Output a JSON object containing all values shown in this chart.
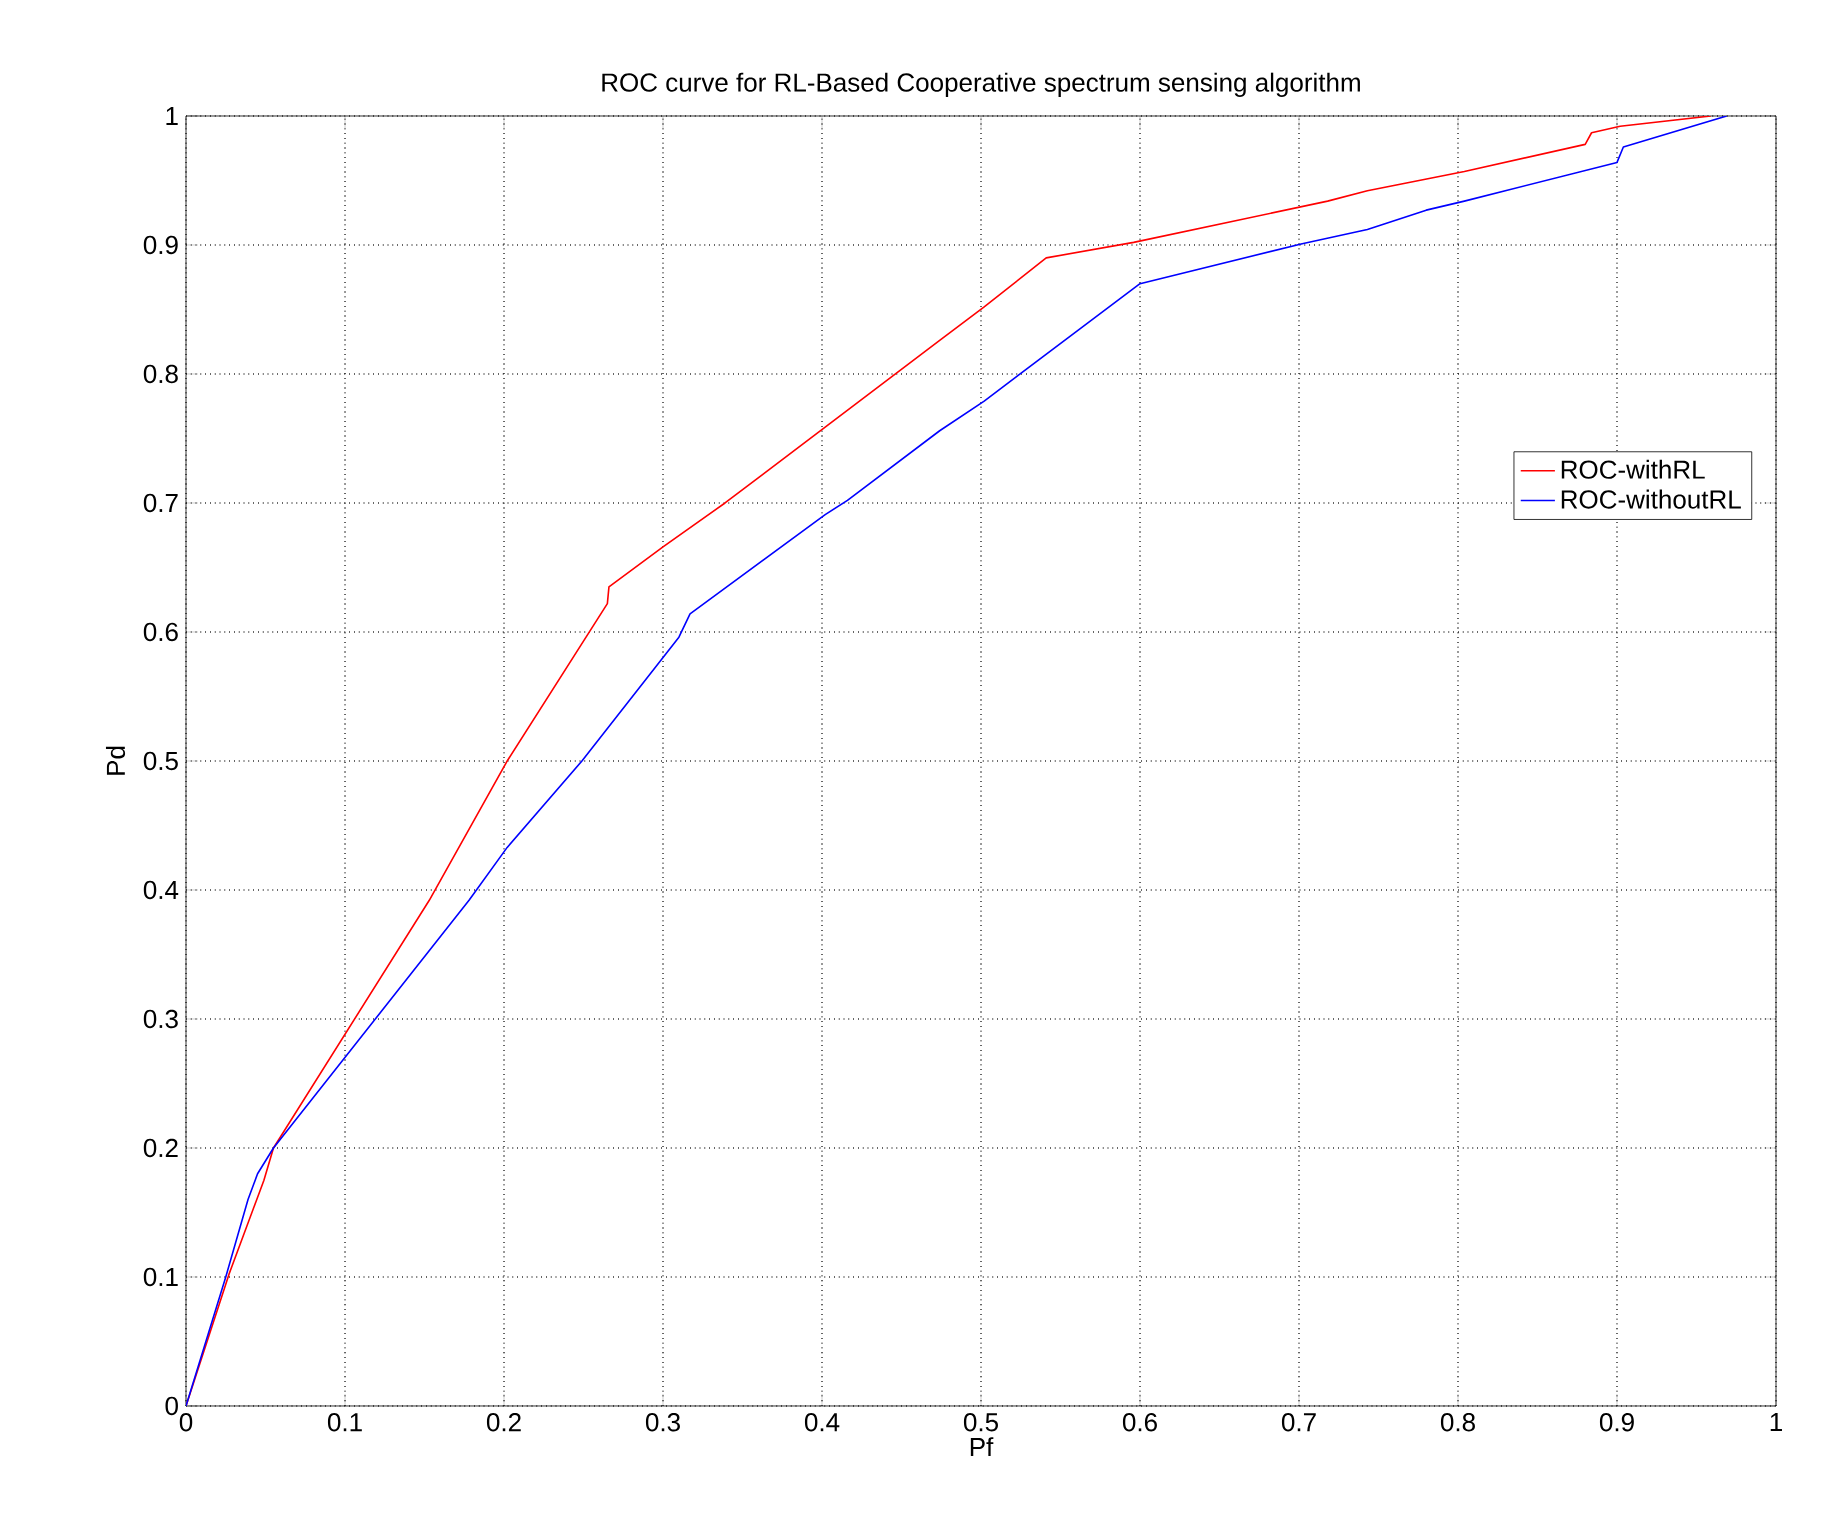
{
  "chart_data": {
    "type": "line",
    "title": "ROC curve for RL-Based Cooperative spectrum sensing algorithm",
    "xlabel": "Pf",
    "ylabel": "Pd",
    "series": [
      {
        "name": "ROC-withRL",
        "color": "#ff0000",
        "x": [
          0,
          0.027,
          0.049,
          0.055,
          0.153,
          0.202,
          0.265,
          0.266,
          0.3,
          0.339,
          0.474,
          0.502,
          0.541,
          0.596,
          0.718,
          0.743,
          0.804,
          0.88,
          0.884,
          0.902,
          0.959
        ],
        "values": [
          0,
          0.102,
          0.175,
          0.2,
          0.392,
          0.5,
          0.622,
          0.635,
          0.666,
          0.7,
          0.826,
          0.852,
          0.89,
          0.902,
          0.934,
          0.942,
          0.957,
          0.978,
          0.987,
          0.992,
          1.0
        ]
      },
      {
        "name": "ROC-withoutRL",
        "color": "#0000ff",
        "x": [
          0,
          0.025,
          0.039,
          0.045,
          0.055,
          0.178,
          0.202,
          0.249,
          0.31,
          0.317,
          0.402,
          0.416,
          0.474,
          0.502,
          0.6,
          0.702,
          0.743,
          0.78,
          0.804,
          0.9,
          0.904,
          0.969
        ],
        "values": [
          0,
          0.1,
          0.16,
          0.18,
          0.2,
          0.392,
          0.433,
          0.5,
          0.596,
          0.614,
          0.691,
          0.702,
          0.756,
          0.779,
          0.87,
          0.901,
          0.912,
          0.927,
          0.934,
          0.964,
          0.976,
          1.0
        ]
      }
    ],
    "xlim": [
      0,
      1
    ],
    "ylim": [
      0,
      1
    ],
    "xticks": [
      0,
      0.1,
      0.2,
      0.3,
      0.4,
      0.5,
      0.6,
      0.7,
      0.8,
      0.9,
      1
    ],
    "yticks": [
      0,
      0.1,
      0.2,
      0.3,
      0.4,
      0.5,
      0.6,
      0.7,
      0.8,
      0.9,
      1
    ],
    "grid": true,
    "legend": "right",
    "line_style": "solid",
    "marker": "none"
  }
}
